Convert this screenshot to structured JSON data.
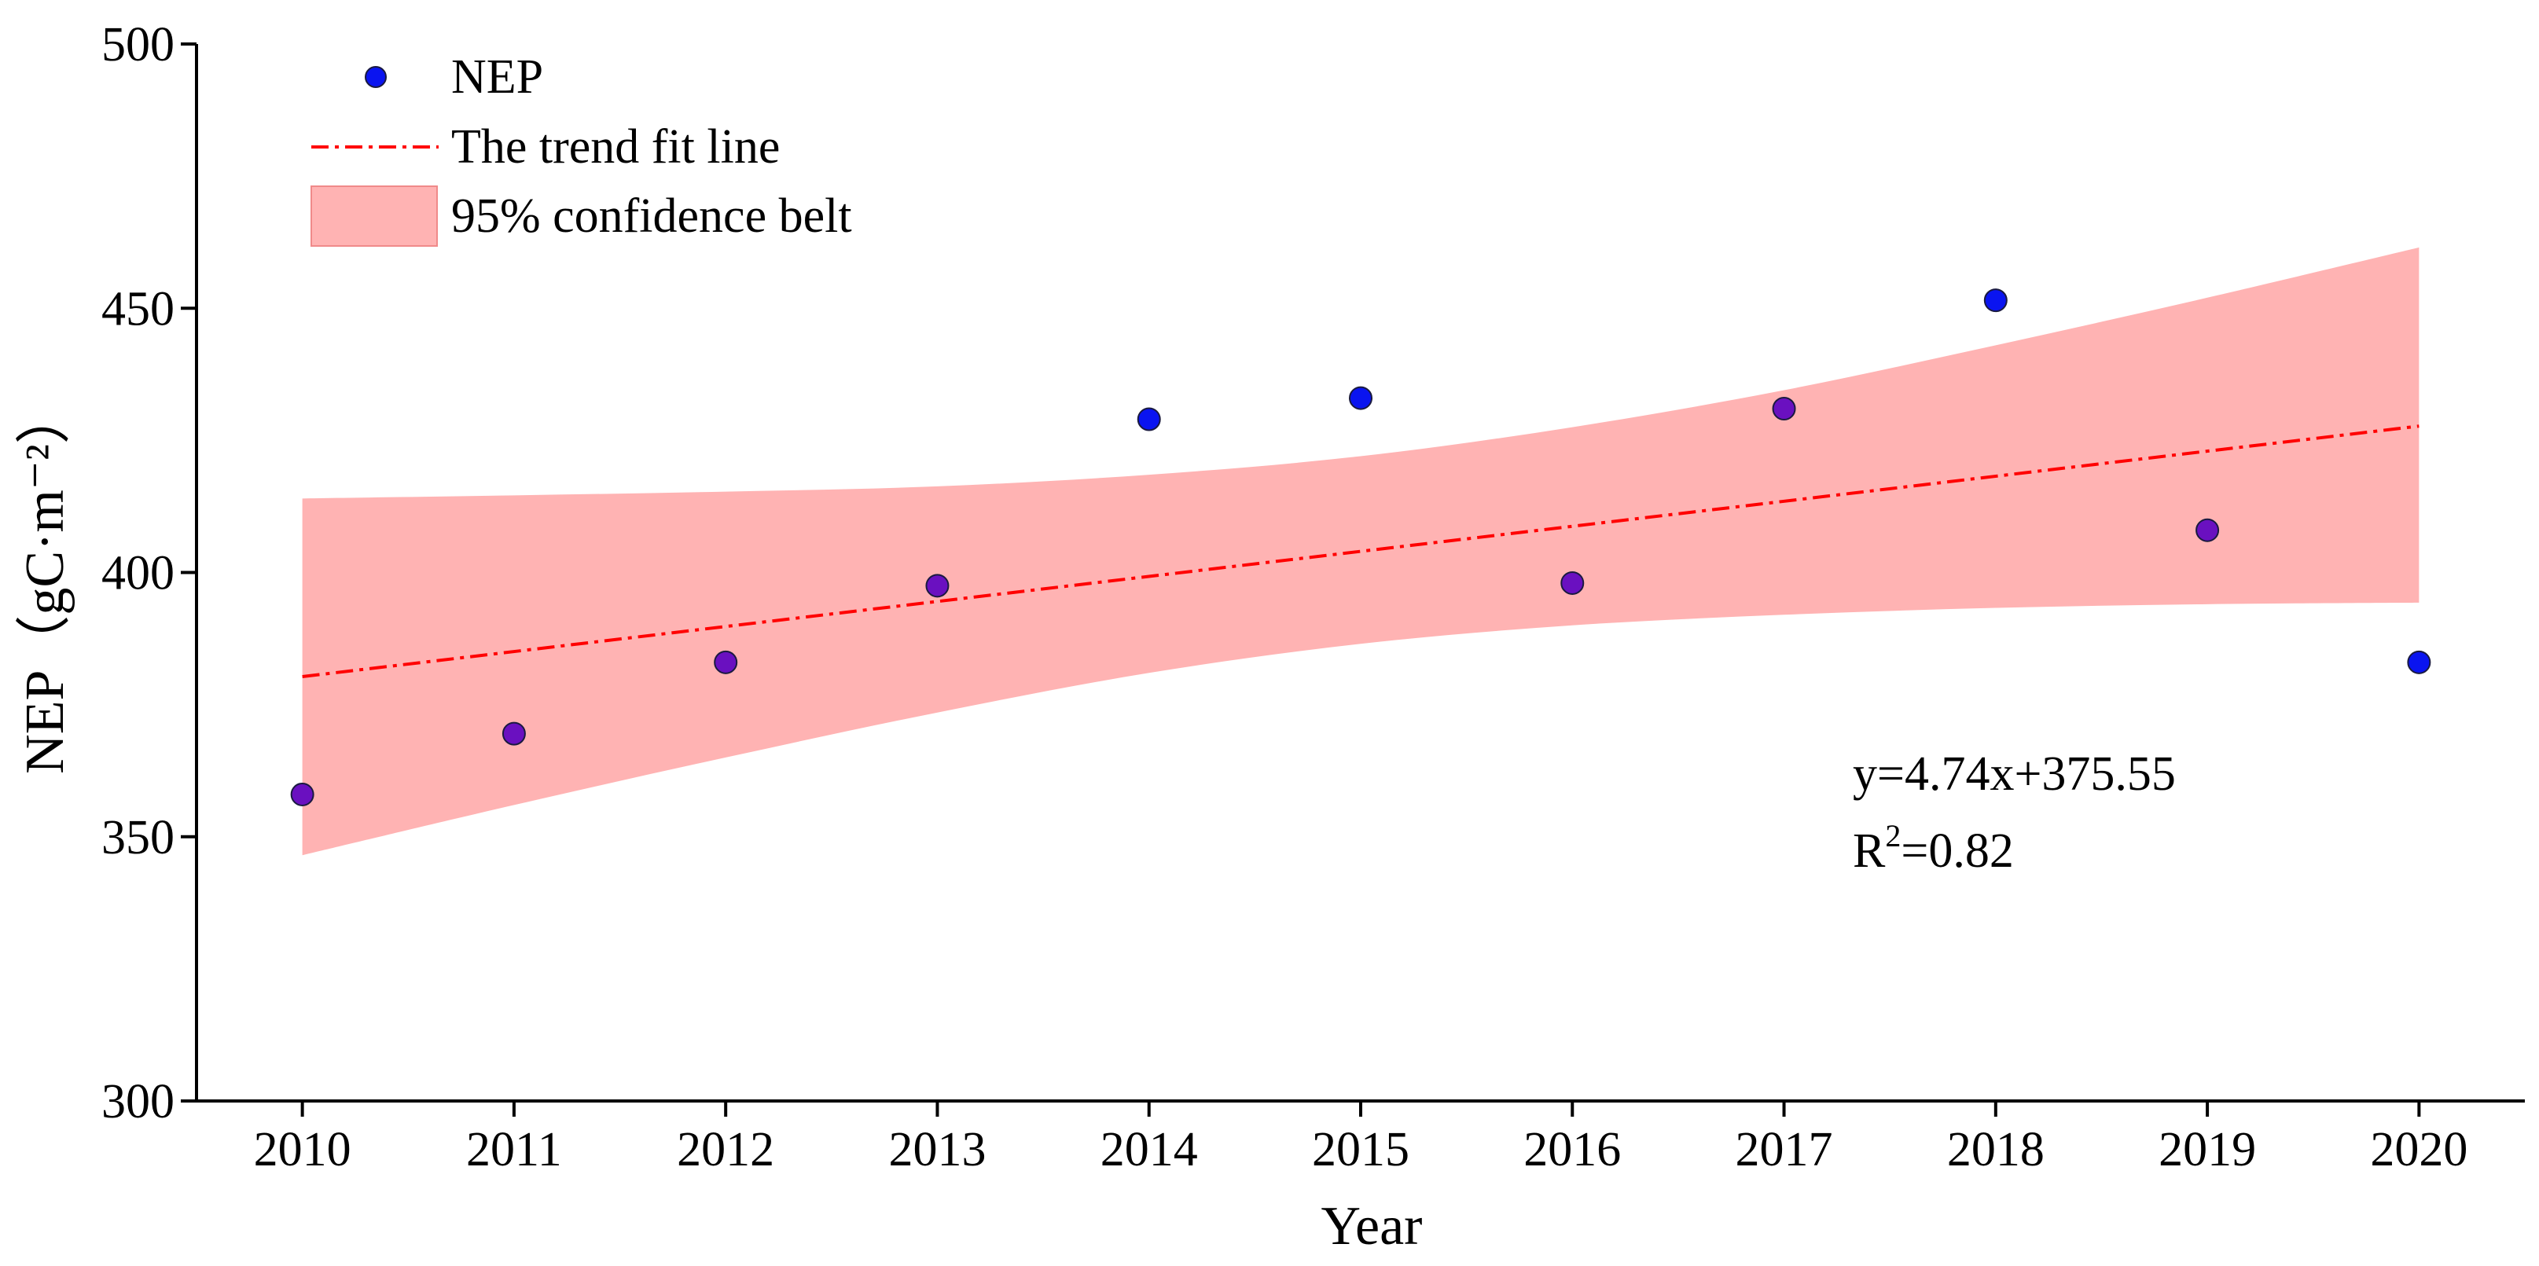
{
  "chart_data": {
    "type": "scatter",
    "title": "",
    "xlabel": "Year",
    "ylabel": "NEP（gC·m⁻²）",
    "xlim": [
      2009.5,
      2020.5
    ],
    "ylim": [
      300,
      500
    ],
    "xticks": [
      "2010",
      "2011",
      "2012",
      "2013",
      "2014",
      "2015",
      "2016",
      "2017",
      "2018",
      "2019",
      "2020"
    ],
    "yticks": [
      "300",
      "350",
      "400",
      "450",
      "500"
    ],
    "series": [
      {
        "name": "NEP",
        "x": [
          2010,
          2011,
          2012,
          2013,
          2014,
          2015,
          2016,
          2017,
          2018,
          2019,
          2020
        ],
        "values": [
          358,
          369.5,
          383,
          397.5,
          429,
          433,
          398,
          431,
          451.5,
          408,
          383
        ]
      }
    ],
    "trend": {
      "name": "The trend fit line",
      "slope": 4.74,
      "intercept": 375.55,
      "start_value": 380.3,
      "end_value": 427.7
    },
    "confidence_band": {
      "name": "95% confidence belt",
      "x": [
        2010,
        2011,
        2012,
        2013,
        2014,
        2015,
        2016,
        2017,
        2018,
        2019,
        2020
      ],
      "upper": [
        414,
        414.6,
        415.3,
        416.3,
        418.5,
        422,
        427.5,
        434.5,
        443,
        452,
        461.5
      ],
      "lower": [
        346.5,
        356,
        365,
        373.5,
        381,
        386.5,
        390,
        392,
        393.3,
        394,
        394.3
      ]
    },
    "equation_line1": "y=4.74x+375.55",
    "equation_line2_prefix": "R",
    "equation_line2_sup": "2",
    "equation_line2_suffix": "=0.82",
    "legend": {
      "position": "top-left",
      "entries": [
        "NEP",
        "The trend fit line",
        "95% confidence belt"
      ]
    },
    "colors": {
      "point_blue": "#0a14f0",
      "point_purple": "#6a10c0",
      "point_edge": "#1a1a40",
      "trend": "#ff0000",
      "band": "#ffb3b3",
      "band_edge": "#f08a8a",
      "axis": "#000000"
    }
  }
}
